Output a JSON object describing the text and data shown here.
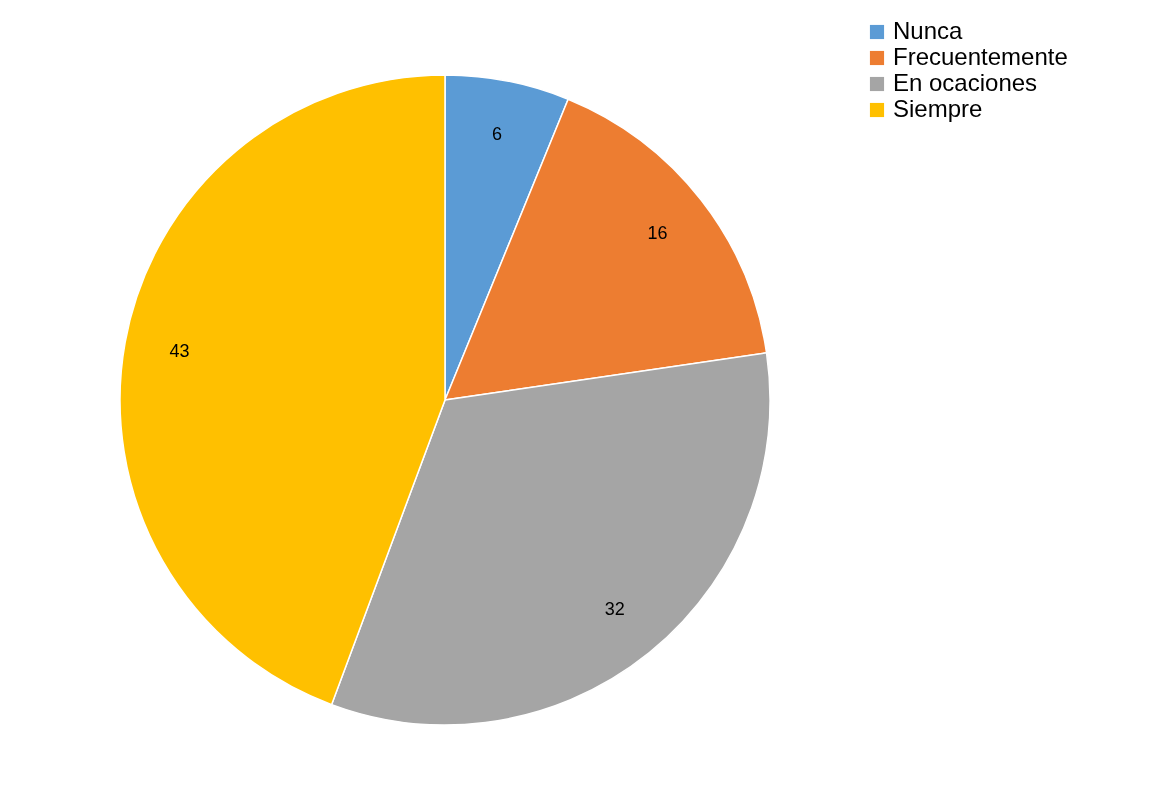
{
  "chart_data": {
    "type": "pie",
    "categories": [
      "Nunca",
      "Frecuentemente",
      "En ocaciones",
      "Siempre"
    ],
    "values": [
      6,
      16,
      32,
      43
    ],
    "colors": [
      "#5b9bd5",
      "#ed7d31",
      "#a5a5a5",
      "#ffc000"
    ],
    "data_labels": true,
    "legend": "right"
  }
}
